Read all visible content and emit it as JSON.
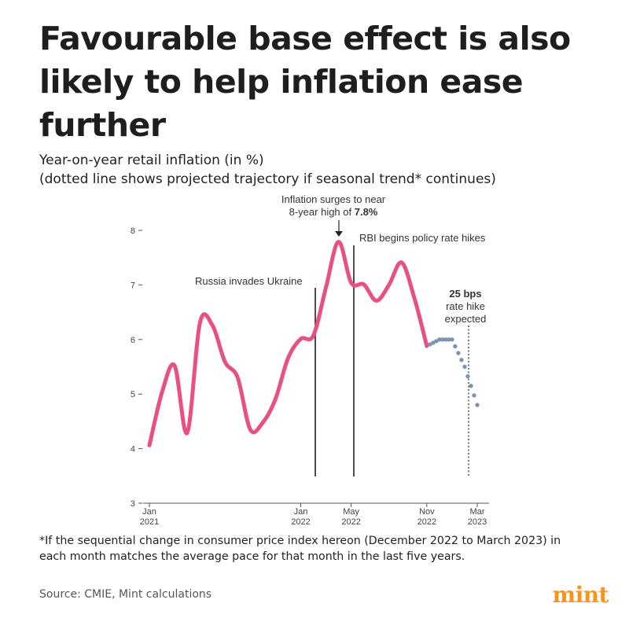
{
  "headline": {
    "line1": "Favourable base effect is also",
    "line2": "likely to help inflation ease",
    "line3": "further"
  },
  "subtitle": {
    "line1": "Year-on-year retail inflation (in %)",
    "line2": "(dotted line shows projected trajectory if seasonal trend* continues)"
  },
  "footnote": "*If the sequential change in consumer price index hereon (December 2022 to March 2023) in each month matches the average pace for that month in the last five years.",
  "source": "Source: CMIE, Mint calculations",
  "brand": "mint",
  "colors": {
    "actual": "#e8517f",
    "projected": "#7e93b3",
    "brand": "#f7941d"
  },
  "chart_data": {
    "type": "line",
    "title": "",
    "xlabel": "",
    "ylabel": "",
    "ylim": [
      3,
      8
    ],
    "x_range": [
      "2021-01",
      "2023-03"
    ],
    "grid": false,
    "y_ticks": [
      "3",
      "4",
      "5",
      "6",
      "7",
      "8"
    ],
    "x_ticks": [
      {
        "date": "2021-01",
        "line1": "Jan",
        "line2": "2021"
      },
      {
        "date": "2022-01",
        "line1": "Jan",
        "line2": "2022"
      },
      {
        "date": "2022-05",
        "line1": "May",
        "line2": "2022"
      },
      {
        "date": "2022-11",
        "line1": "Nov",
        "line2": "2022"
      },
      {
        "date": "2023-03",
        "line1": "Mar",
        "line2": "2023"
      }
    ],
    "series": [
      {
        "style": "solid",
        "x": [
          "2021-01",
          "2021-02",
          "2021-03",
          "2021-04",
          "2021-05",
          "2021-06",
          "2021-07",
          "2021-08",
          "2021-09",
          "2021-10",
          "2021-11",
          "2021-12",
          "2022-01",
          "2022-02",
          "2022-03",
          "2022-04",
          "2022-05",
          "2022-06",
          "2022-07",
          "2022-08",
          "2022-09",
          "2022-10",
          "2022-11"
        ],
        "values": [
          4.06,
          5.03,
          5.52,
          4.29,
          6.3,
          6.26,
          5.59,
          5.3,
          4.35,
          4.48,
          4.91,
          5.66,
          6.01,
          6.07,
          6.95,
          7.79,
          7.04,
          7.01,
          6.71,
          7.0,
          7.41,
          6.77,
          5.88
        ]
      },
      {
        "style": "dotted",
        "x": [
          "2022-11",
          "2022-12",
          "2023-01",
          "2023-02",
          "2023-03"
        ],
        "values": [
          5.88,
          6.0,
          6.0,
          5.5,
          4.8
        ]
      }
    ],
    "annotations": [
      {
        "date": "2022-01",
        "text": "Russia invades Ukraine"
      },
      {
        "date": "2022-04",
        "text_line1": "Inflation surges to near",
        "text_line2": "8-year high of ",
        "text_bold": "7.8%"
      },
      {
        "date": "2022-05",
        "text": "RBI begins policy rate hikes"
      },
      {
        "date": "2023-02",
        "text_bold": "25 bps",
        "text_line2": "rate hike",
        "text_line3": "expected"
      }
    ]
  }
}
